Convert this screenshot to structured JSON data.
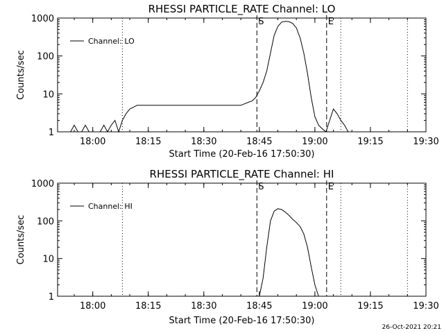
{
  "window": {
    "timestamp": "26-Oct-2021 20:21"
  },
  "chart_data": [
    {
      "type": "line",
      "title": "RHESSI PARTICLE_RATE Channel: LO",
      "xlabel": "Start Time (20-Feb-16 17:50:30)",
      "ylabel": "Counts/sec",
      "yscale": "log",
      "ylim": [
        1,
        1000
      ],
      "xlim": [
        "17:50:30",
        "19:30:00"
      ],
      "xticks": [
        "18:00",
        "18:15",
        "18:30",
        "18:45",
        "19:00",
        "19:15",
        "19:30"
      ],
      "yticks": [
        "1",
        "10",
        "100",
        "1000"
      ],
      "legend": {
        "position": "top-left",
        "entries": [
          "Channel: LO"
        ]
      },
      "markers": {
        "dashed": [
          {
            "label": "S",
            "time": "18:44:20"
          },
          {
            "label": "E",
            "time": "19:03:10"
          }
        ],
        "dotted": [
          {
            "label": "",
            "time": "18:08:00"
          },
          {
            "label": "",
            "time": "19:07:00"
          },
          {
            "label": "",
            "time": "19:25:00"
          }
        ]
      },
      "series": [
        {
          "name": "Channel: LO",
          "x": [
            "17:54",
            "17:55",
            "17:56",
            "17:57",
            "17:58",
            "17:59",
            "18:00",
            "18:01",
            "18:02",
            "18:03",
            "18:04",
            "18:05",
            "18:06",
            "18:07",
            "18:08",
            "18:09",
            "18:10",
            "18:12",
            "18:15",
            "18:20",
            "18:25",
            "18:30",
            "18:35",
            "18:40",
            "18:42",
            "18:43",
            "18:44",
            "18:45",
            "18:46",
            "18:47",
            "18:48",
            "18:49",
            "18:50",
            "18:51",
            "18:52",
            "18:53",
            "18:54",
            "18:55",
            "18:56",
            "18:57",
            "18:58",
            "18:59",
            "19:00",
            "19:01",
            "19:02",
            "19:03",
            "19:04",
            "19:05",
            "19:06",
            "19:07",
            "19:08",
            "19:09",
            "19:10",
            "19:12",
            "19:15",
            "19:18",
            "19:20",
            "19:22",
            "19:25"
          ],
          "values": [
            1,
            1.5,
            1,
            1,
            1.5,
            1,
            1,
            1,
            1,
            1.5,
            1,
            1.5,
            2,
            1,
            2,
            3,
            4,
            5,
            5,
            5,
            5,
            5,
            5,
            5,
            6,
            6.5,
            8,
            12,
            20,
            40,
            120,
            350,
            600,
            780,
            820,
            800,
            720,
            550,
            300,
            120,
            35,
            8,
            2.5,
            1.5,
            1.2,
            1,
            2,
            4,
            3,
            2,
            1.5,
            1,
            1,
            1,
            1,
            1,
            1,
            1,
            1
          ]
        }
      ]
    },
    {
      "type": "line",
      "title": "RHESSI PARTICLE_RATE Channel: HI",
      "xlabel": "Start Time (20-Feb-16 17:50:30)",
      "ylabel": "Counts/sec",
      "yscale": "log",
      "ylim": [
        1,
        1000
      ],
      "xlim": [
        "17:50:30",
        "19:30:00"
      ],
      "xticks": [
        "18:00",
        "18:15",
        "18:30",
        "18:45",
        "19:00",
        "19:15",
        "19:30"
      ],
      "yticks": [
        "1",
        "10",
        "100",
        "1000"
      ],
      "legend": {
        "position": "top-left",
        "entries": [
          "Channel: HI"
        ]
      },
      "markers": {
        "dashed": [
          {
            "label": "S",
            "time": "18:44:20"
          },
          {
            "label": "E",
            "time": "19:03:10"
          }
        ],
        "dotted": [
          {
            "label": "",
            "time": "18:08:00"
          },
          {
            "label": "",
            "time": "19:07:00"
          },
          {
            "label": "",
            "time": "19:25:00"
          }
        ]
      },
      "series": [
        {
          "name": "Channel: HI",
          "x": [
            "18:45",
            "18:46",
            "18:47",
            "18:48",
            "18:49",
            "18:50",
            "18:51",
            "18:52",
            "18:53",
            "18:54",
            "18:55",
            "18:56",
            "18:57",
            "18:58",
            "18:59",
            "19:00",
            "19:01"
          ],
          "values": [
            1,
            3,
            20,
            100,
            180,
            210,
            200,
            170,
            140,
            110,
            90,
            70,
            45,
            20,
            6,
            2,
            1
          ]
        }
      ]
    }
  ]
}
